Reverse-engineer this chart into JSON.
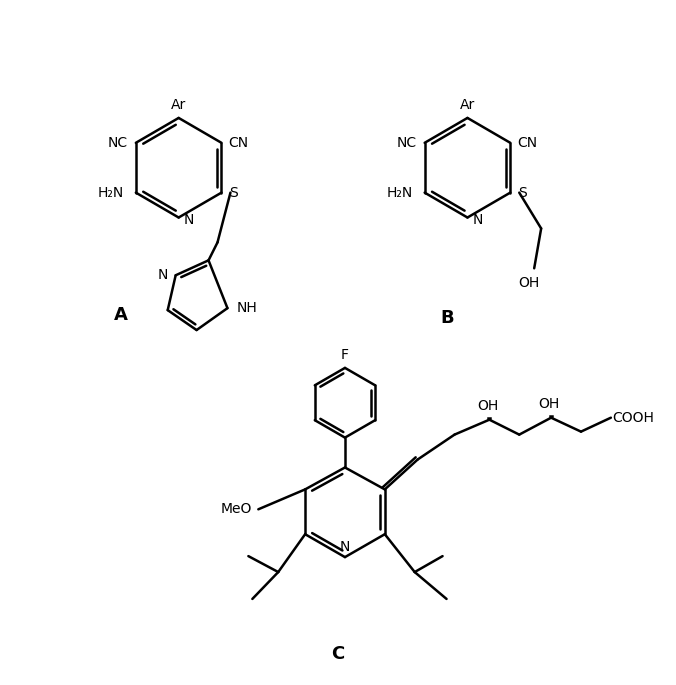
{
  "background_color": "#ffffff",
  "figsize": [
    6.76,
    6.85
  ],
  "dpi": 100,
  "label_A": "A",
  "label_B": "B",
  "label_C": "C",
  "line_color": "#000000",
  "line_width": 1.8,
  "font_size_atom": 10,
  "font_size_label": 13
}
